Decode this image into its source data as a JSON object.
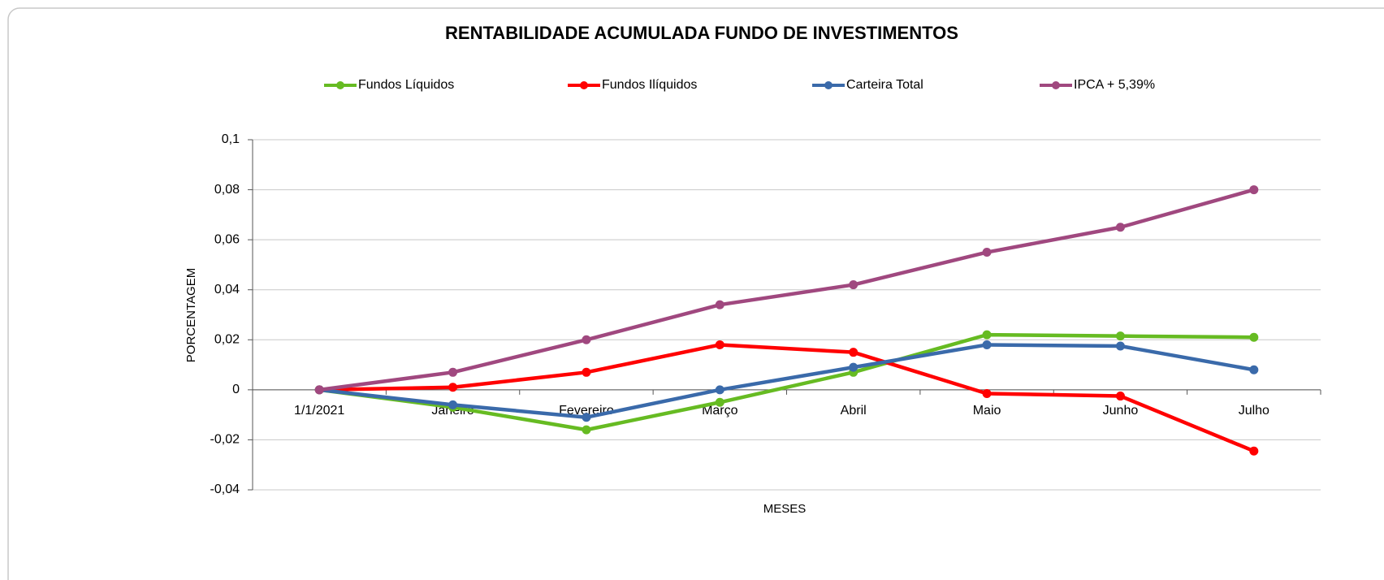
{
  "chart_data": {
    "type": "line",
    "title": "RENTABILIDADE ACUMULADA FUNDO DE INVESTIMENTOS",
    "xlabel": "MESES",
    "ylabel": "PORCENTAGEM",
    "categories": [
      "1/1/2021",
      "Janeiro",
      "Fevereiro",
      "Março",
      "Abril",
      "Maio",
      "Junho",
      "Julho"
    ],
    "series": [
      {
        "name": "Fundos Líquidos",
        "color": "#66bb22",
        "values": [
          0,
          -0.007,
          -0.016,
          -0.005,
          0.007,
          0.022,
          0.0215,
          0.021
        ]
      },
      {
        "name": "Fundos Ilíquidos",
        "color": "#ff0000",
        "values": [
          0,
          0.001,
          0.007,
          0.018,
          0.015,
          -0.0015,
          -0.0025,
          -0.0245
        ]
      },
      {
        "name": "Carteira Total",
        "color": "#3a6aaa",
        "values": [
          0,
          -0.006,
          -0.011,
          0,
          0.009,
          0.018,
          0.0175,
          0.008
        ]
      },
      {
        "name": "IPCA + 5,39%",
        "color": "#a0487f",
        "values": [
          0,
          0.007,
          0.02,
          0.034,
          0.042,
          0.055,
          0.065,
          0.08
        ]
      }
    ],
    "ylim": [
      -0.04,
      0.1
    ],
    "yticks": [
      {
        "value": -0.04,
        "label": "-0,04"
      },
      {
        "value": -0.02,
        "label": "-0,02"
      },
      0,
      {
        "value": 0.02,
        "label": "0,02"
      },
      {
        "value": 0.04,
        "label": "0,04"
      },
      {
        "value": 0.06,
        "label": "0,06"
      },
      {
        "value": 0.08,
        "label": "0,08"
      },
      {
        "value": 0.1,
        "label": "0,1"
      }
    ],
    "grid": true,
    "legend": "top"
  }
}
